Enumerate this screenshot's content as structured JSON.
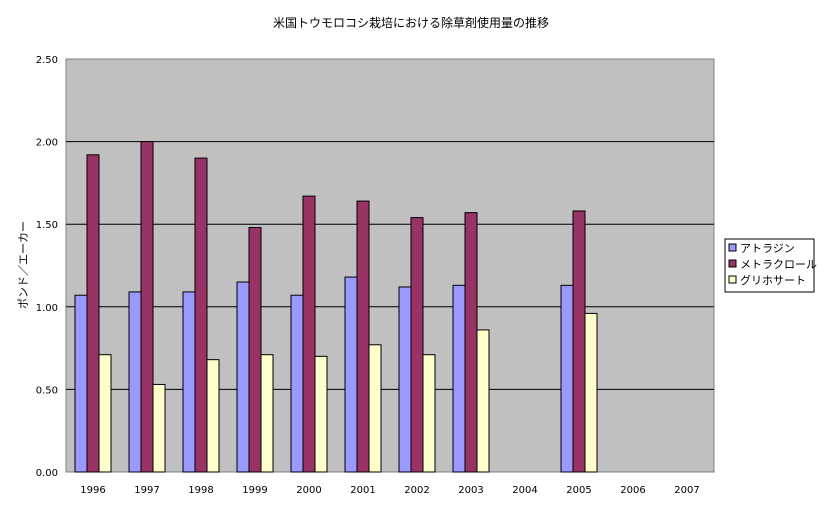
{
  "chart_data": {
    "type": "bar",
    "title": "米国トウモロコシ栽培における除草剤使用量の推移",
    "xlabel": "",
    "ylabel": "ポンド／エーカー",
    "ylim": [
      0,
      2.5
    ],
    "yticks": [
      "0.00",
      "0.50",
      "1.00",
      "1.50",
      "2.00",
      "2.50"
    ],
    "grid": true,
    "legend_position": "right",
    "categories": [
      "1996",
      "1997",
      "1998",
      "1999",
      "2000",
      "2001",
      "2002",
      "2003",
      "2004",
      "2005",
      "2006",
      "2007"
    ],
    "series": [
      {
        "name": "アトラジン",
        "color": "#9999ff",
        "values": [
          1.07,
          1.09,
          1.09,
          1.15,
          1.07,
          1.18,
          1.12,
          1.13,
          null,
          1.13,
          null,
          null
        ]
      },
      {
        "name": "メトラクロール",
        "color": "#993366",
        "values": [
          1.92,
          2.0,
          1.9,
          1.48,
          1.67,
          1.64,
          1.54,
          1.57,
          null,
          1.58,
          null,
          null
        ]
      },
      {
        "name": "グリホサート",
        "color": "#ffffcc",
        "values": [
          0.71,
          0.53,
          0.68,
          0.71,
          0.7,
          0.77,
          0.71,
          0.86,
          null,
          0.96,
          null,
          null
        ]
      }
    ]
  },
  "colors": {
    "plot_background": "#c0c0c0"
  }
}
